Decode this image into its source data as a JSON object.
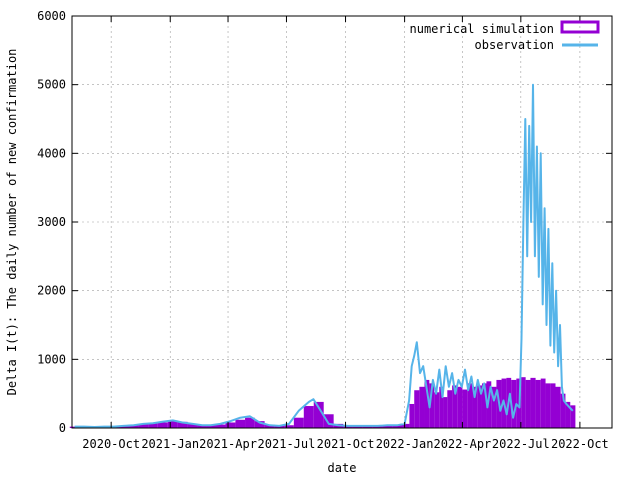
{
  "chart_data": {
    "type": "bar",
    "xlabel": "date",
    "ylabel": "Delta I(t): The daily number of new confirmation",
    "ylim": [
      0,
      6000
    ],
    "xlim": [
      "2020-08-01",
      "2022-11-20"
    ],
    "y_ticks": [
      "0",
      "1000",
      "2000",
      "3000",
      "4000",
      "5000",
      "6000"
    ],
    "x_ticks": [
      {
        "date": "2020-10-01",
        "label": "2020-Oct"
      },
      {
        "date": "2021-01-01",
        "label": "2021-Jan"
      },
      {
        "date": "2021-04-01",
        "label": "2021-Apr"
      },
      {
        "date": "2021-07-01",
        "label": "2021-Jul"
      },
      {
        "date": "2021-10-01",
        "label": "2021-Oct"
      },
      {
        "date": "2022-01-01",
        "label": "2022-Jan"
      },
      {
        "date": "2022-04-01",
        "label": "2022-Apr"
      },
      {
        "date": "2022-07-01",
        "label": "2022-Jul"
      },
      {
        "date": "2022-10-01",
        "label": "2022-Oct"
      }
    ],
    "grid": true,
    "legend_position": "top-right",
    "series": [
      {
        "name": "numerical simulation",
        "kind": "bar",
        "color": "#9400d3",
        "x": [
          "2020-08-05",
          "2020-08-20",
          "2020-09-05",
          "2020-09-20",
          "2020-10-05",
          "2020-10-20",
          "2020-11-05",
          "2020-11-20",
          "2020-12-05",
          "2020-12-20",
          "2021-01-05",
          "2021-01-20",
          "2021-02-05",
          "2021-02-20",
          "2021-03-05",
          "2021-03-20",
          "2021-04-05",
          "2021-04-20",
          "2021-05-05",
          "2021-05-20",
          "2021-06-05",
          "2021-06-20",
          "2021-07-05",
          "2021-07-20",
          "2021-08-05",
          "2021-08-20",
          "2021-09-05",
          "2021-09-20",
          "2021-10-05",
          "2021-10-20",
          "2021-11-05",
          "2021-11-20",
          "2021-12-05",
          "2021-12-20",
          "2022-01-05",
          "2022-01-12",
          "2022-01-20",
          "2022-01-28",
          "2022-02-05",
          "2022-02-12",
          "2022-02-20",
          "2022-02-28",
          "2022-03-05",
          "2022-03-12",
          "2022-03-20",
          "2022-03-28",
          "2022-04-05",
          "2022-04-12",
          "2022-04-20",
          "2022-04-28",
          "2022-05-05",
          "2022-05-12",
          "2022-05-20",
          "2022-05-28",
          "2022-06-05",
          "2022-06-12",
          "2022-06-20",
          "2022-06-28",
          "2022-07-05",
          "2022-07-12",
          "2022-07-20",
          "2022-07-28",
          "2022-08-05",
          "2022-08-12",
          "2022-08-20",
          "2022-08-28",
          "2022-09-05",
          "2022-09-12",
          "2022-09-20"
        ],
        "values": [
          20,
          25,
          20,
          20,
          25,
          30,
          40,
          55,
          70,
          80,
          110,
          90,
          60,
          40,
          40,
          50,
          80,
          120,
          150,
          100,
          50,
          30,
          40,
          150,
          320,
          380,
          200,
          60,
          40,
          40,
          30,
          30,
          40,
          40,
          60,
          350,
          550,
          600,
          700,
          650,
          520,
          600,
          450,
          550,
          620,
          600,
          560,
          650,
          600,
          620,
          650,
          680,
          600,
          700,
          720,
          730,
          700,
          720,
          740,
          700,
          730,
          700,
          720,
          650,
          650,
          600,
          500,
          380,
          330
        ]
      },
      {
        "name": "observation",
        "kind": "line",
        "color": "#56b4e9",
        "x": [
          "2020-08-05",
          "2020-08-20",
          "2020-09-05",
          "2020-09-20",
          "2020-10-05",
          "2020-10-20",
          "2020-11-05",
          "2020-11-20",
          "2020-12-05",
          "2020-12-20",
          "2021-01-05",
          "2021-01-20",
          "2021-02-05",
          "2021-02-20",
          "2021-03-05",
          "2021-03-20",
          "2021-04-05",
          "2021-04-20",
          "2021-05-05",
          "2021-05-20",
          "2021-06-05",
          "2021-06-20",
          "2021-07-05",
          "2021-07-20",
          "2021-08-05",
          "2021-08-12",
          "2021-08-20",
          "2021-09-05",
          "2021-09-20",
          "2021-10-05",
          "2021-10-20",
          "2021-11-05",
          "2021-11-20",
          "2021-12-05",
          "2021-12-20",
          "2022-01-01",
          "2022-01-08",
          "2022-01-12",
          "2022-01-16",
          "2022-01-20",
          "2022-01-25",
          "2022-01-30",
          "2022-02-04",
          "2022-02-09",
          "2022-02-14",
          "2022-02-19",
          "2022-02-24",
          "2022-03-01",
          "2022-03-06",
          "2022-03-11",
          "2022-03-16",
          "2022-03-21",
          "2022-03-26",
          "2022-03-31",
          "2022-04-05",
          "2022-04-10",
          "2022-04-15",
          "2022-04-20",
          "2022-04-25",
          "2022-04-30",
          "2022-05-05",
          "2022-05-10",
          "2022-05-15",
          "2022-05-20",
          "2022-05-25",
          "2022-05-30",
          "2022-06-04",
          "2022-06-09",
          "2022-06-14",
          "2022-06-19",
          "2022-06-24",
          "2022-06-29",
          "2022-07-02",
          "2022-07-05",
          "2022-07-08",
          "2022-07-11",
          "2022-07-14",
          "2022-07-17",
          "2022-07-20",
          "2022-07-23",
          "2022-07-26",
          "2022-07-29",
          "2022-08-01",
          "2022-08-04",
          "2022-08-07",
          "2022-08-10",
          "2022-08-13",
          "2022-08-16",
          "2022-08-19",
          "2022-08-22",
          "2022-08-25",
          "2022-08-28",
          "2022-08-31",
          "2022-09-03",
          "2022-09-06",
          "2022-09-10",
          "2022-09-15",
          "2022-09-20"
        ],
        "values": [
          20,
          20,
          15,
          20,
          20,
          30,
          40,
          60,
          70,
          90,
          110,
          80,
          60,
          40,
          40,
          60,
          100,
          150,
          170,
          80,
          40,
          30,
          60,
          250,
          380,
          420,
          300,
          60,
          40,
          30,
          30,
          30,
          30,
          40,
          40,
          60,
          400,
          900,
          1050,
          1250,
          800,
          900,
          600,
          300,
          700,
          500,
          850,
          450,
          900,
          600,
          800,
          500,
          700,
          600,
          850,
          550,
          750,
          450,
          700,
          500,
          650,
          300,
          600,
          400,
          550,
          250,
          400,
          200,
          500,
          150,
          350,
          300,
          1300,
          3000,
          4500,
          2500,
          4400,
          3000,
          5000,
          2500,
          4100,
          2200,
          4000,
          1800,
          3200,
          1500,
          2900,
          1200,
          2400,
          1100,
          2000,
          900,
          1500,
          600,
          400,
          350,
          300,
          250
        ]
      }
    ]
  }
}
